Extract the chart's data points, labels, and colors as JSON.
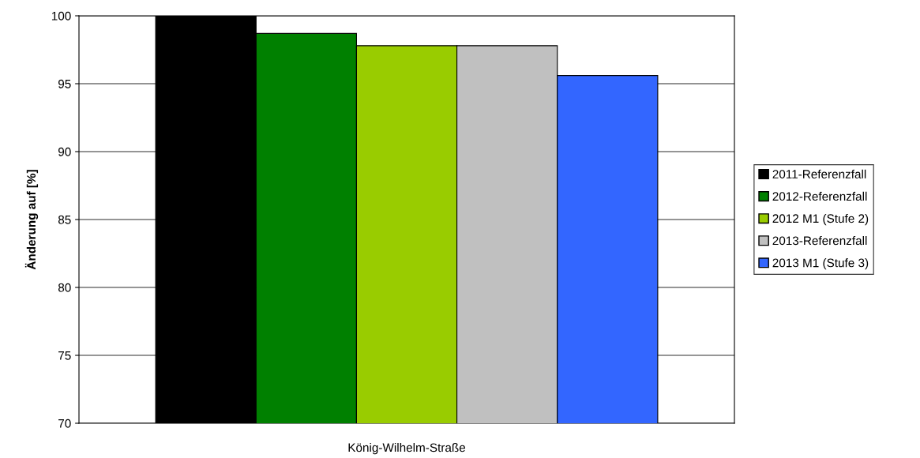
{
  "chart_data": {
    "type": "bar",
    "ylabel": "Änderung auf [%]",
    "categories": [
      "König-Wilhelm-Straße"
    ],
    "series": [
      {
        "name": "2011-Referenzfall",
        "color": "#000000",
        "values": [
          100
        ]
      },
      {
        "name": "2012-Referenzfall",
        "color": "#008000",
        "values": [
          98.7
        ]
      },
      {
        "name": "2012 M1 (Stufe 2)",
        "color": "#99cc00",
        "values": [
          97.8
        ]
      },
      {
        "name": "2013-Referenzfall",
        "color": "#c0c0c0",
        "values": [
          97.8
        ]
      },
      {
        "name": "2013 M1 (Stufe 3)",
        "color": "#3366ff",
        "values": [
          95.6
        ]
      }
    ],
    "ylim": [
      70,
      100
    ],
    "yticks": [
      70,
      75,
      80,
      85,
      90,
      95,
      100
    ],
    "grid": "y",
    "legend": "right"
  }
}
